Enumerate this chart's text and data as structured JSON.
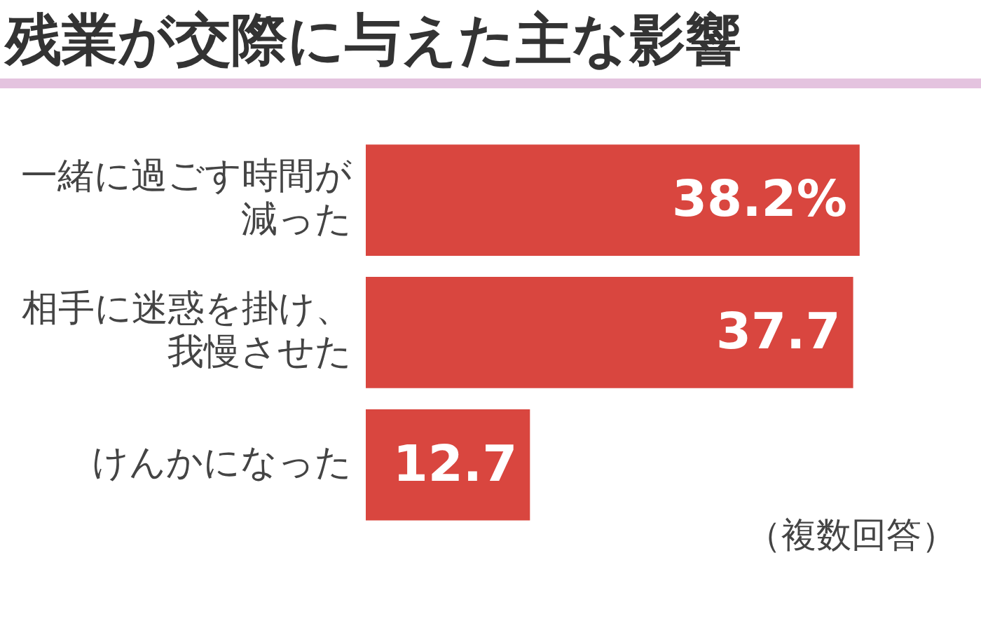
{
  "chart_data": {
    "type": "bar",
    "orientation": "horizontal",
    "title": "残業が交際に与えた主な影響",
    "categories": [
      "一緒に過ごす時間が減った",
      "相手に迷惑を掛け、我慢させた",
      "けんかになった"
    ],
    "values": [
      38.2,
      37.7,
      12.7
    ],
    "color": "#d9463f",
    "value_labels": [
      "38.2%",
      "37.7",
      "12.7"
    ],
    "annotations": [
      "（複数回答）"
    ],
    "grid": false,
    "legend": false,
    "tick_labels": "y"
  }
}
